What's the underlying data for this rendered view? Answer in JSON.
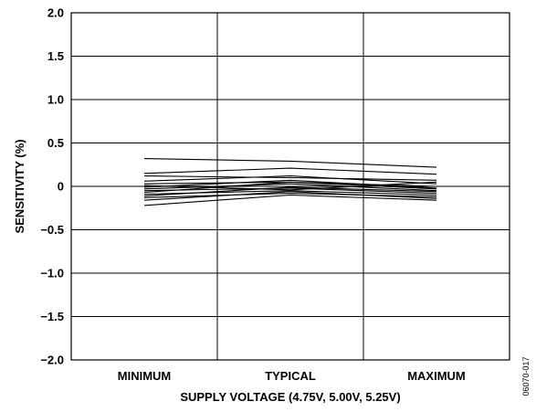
{
  "chart_data": {
    "type": "line",
    "title": "",
    "xlabel": "SUPPLY VOLTAGE (4.75V, 5.00V, 5.25V)",
    "ylabel": "SENSITIVITY (%)",
    "categories": [
      "MINIMUM",
      "TYPICAL",
      "MAXIMUM"
    ],
    "ylim": [
      -2.0,
      2.0
    ],
    "yticks": [
      2.0,
      1.5,
      1.0,
      0.5,
      0,
      -0.5,
      -1.0,
      -1.5,
      -2.0
    ],
    "ytick_labels": [
      "2.0",
      "1.5",
      "1.0",
      "0.5",
      "0",
      "−0.5",
      "−1.0",
      "−1.5",
      "−2.0"
    ],
    "grid": true,
    "line_color": "#000000",
    "series": [
      {
        "values": [
          0.32,
          0.29,
          0.22
        ]
      },
      {
        "values": [
          0.15,
          0.21,
          0.14
        ]
      },
      {
        "values": [
          0.12,
          0.1,
          0.07
        ]
      },
      {
        "values": [
          0.06,
          0.12,
          0.03
        ]
      },
      {
        "values": [
          0.03,
          0.05,
          0.0
        ]
      },
      {
        "values": [
          0.01,
          -0.04,
          0.05
        ]
      },
      {
        "values": [
          -0.01,
          0.07,
          -0.02
        ]
      },
      {
        "values": [
          -0.03,
          0.03,
          -0.05
        ]
      },
      {
        "values": [
          -0.05,
          -0.02,
          -0.08
        ]
      },
      {
        "values": [
          -0.07,
          0.05,
          -0.03
        ]
      },
      {
        "values": [
          -0.09,
          -0.05,
          -0.1
        ]
      },
      {
        "values": [
          -0.11,
          -0.01,
          -0.06
        ]
      },
      {
        "values": [
          -0.13,
          -0.08,
          -0.12
        ]
      },
      {
        "values": [
          -0.16,
          -0.06,
          -0.14
        ]
      },
      {
        "values": [
          -0.22,
          -0.1,
          -0.16
        ]
      }
    ]
  },
  "figure_id": "06070-017"
}
